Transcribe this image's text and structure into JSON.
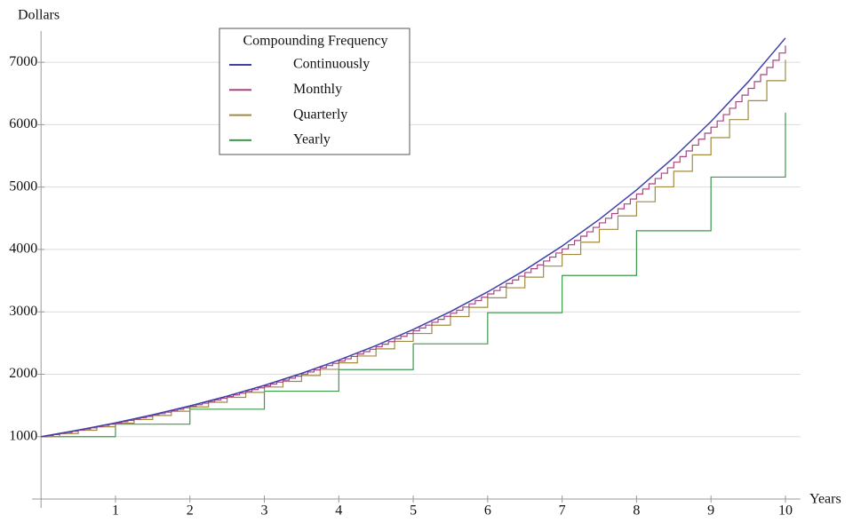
{
  "chart_data": {
    "type": "line",
    "x_label": "Years",
    "y_label": "Dollars",
    "legend_title": "Compounding Frequency",
    "xlim": [
      0,
      10.2
    ],
    "ylim": [
      0,
      7500
    ],
    "xticks": [
      1,
      2,
      3,
      4,
      5,
      6,
      7,
      8,
      9,
      10
    ],
    "yticks": [
      1000,
      2000,
      3000,
      4000,
      5000,
      6000,
      7000
    ],
    "grid": true,
    "series": [
      {
        "name": "Continuously",
        "color": "#4040a8",
        "drawstyle": "line",
        "steps_per_year": 2,
        "values": [
          1000,
          1105,
          1221,
          1350,
          1492,
          1649,
          1822,
          2014,
          2226,
          2460,
          2718,
          3004,
          3320,
          3669,
          4055,
          4482,
          4953,
          5474,
          6050,
          6686,
          7389
        ]
      },
      {
        "name": "Monthly",
        "color": "#a8447f",
        "drawstyle": "steps",
        "steps_per_year": 12,
        "values": [
          1000,
          1017,
          1034,
          1051,
          1068,
          1086,
          1104,
          1123,
          1141,
          1160,
          1180,
          1199,
          1219,
          1240,
          1260,
          1281,
          1303,
          1324,
          1347,
          1369,
          1392,
          1415,
          1439,
          1463,
          1487,
          1512,
          1537,
          1563,
          1589,
          1615,
          1642,
          1669,
          1697,
          1725,
          1754,
          1783,
          1813,
          1843,
          1874,
          1905,
          1937,
          1969,
          2002,
          2036,
          2069,
          2104,
          2139,
          2175,
          2211,
          2248,
          2285,
          2323,
          2362,
          2401,
          2441,
          2482,
          2523,
          2566,
          2608,
          2652,
          2696,
          2741,
          2787,
          2833,
          2880,
          2928,
          2977,
          3027,
          3077,
          3128,
          3181,
          3234,
          3287,
          3342,
          3398,
          3455,
          3512,
          3571,
          3630,
          3691,
          3752,
          3815,
          3878,
          3943,
          4009,
          4075,
          4143,
          4212,
          4283,
          4354,
          4427,
          4500,
          4575,
          4652,
          4729,
          4808,
          4888,
          4969,
          5052,
          5137,
          5222,
          5309,
          5398,
          5488,
          5579,
          5672,
          5767,
          5863,
          5960,
          6060,
          6161,
          6263,
          6368,
          6474,
          6582,
          6691,
          6803,
          6916,
          7032,
          7149,
          7268
        ]
      },
      {
        "name": "Quarterly",
        "color": "#a08b40",
        "drawstyle": "steps",
        "steps_per_year": 4,
        "values": [
          1000,
          1050,
          1103,
          1158,
          1216,
          1276,
          1340,
          1407,
          1477,
          1551,
          1629,
          1710,
          1796,
          1886,
          1980,
          2079,
          2183,
          2292,
          2407,
          2527,
          2653,
          2786,
          2925,
          3072,
          3225,
          3386,
          3556,
          3733,
          3920,
          4116,
          4322,
          4538,
          4765,
          5003,
          5253,
          5516,
          5792,
          6081,
          6385,
          6705,
          7040
        ]
      },
      {
        "name": "Yearly",
        "color": "#3c9a4c",
        "drawstyle": "steps",
        "steps_per_year": 1,
        "values": [
          1000,
          1200,
          1440,
          1728,
          2074,
          2488,
          2986,
          3583,
          4300,
          5160,
          6192
        ]
      }
    ]
  }
}
